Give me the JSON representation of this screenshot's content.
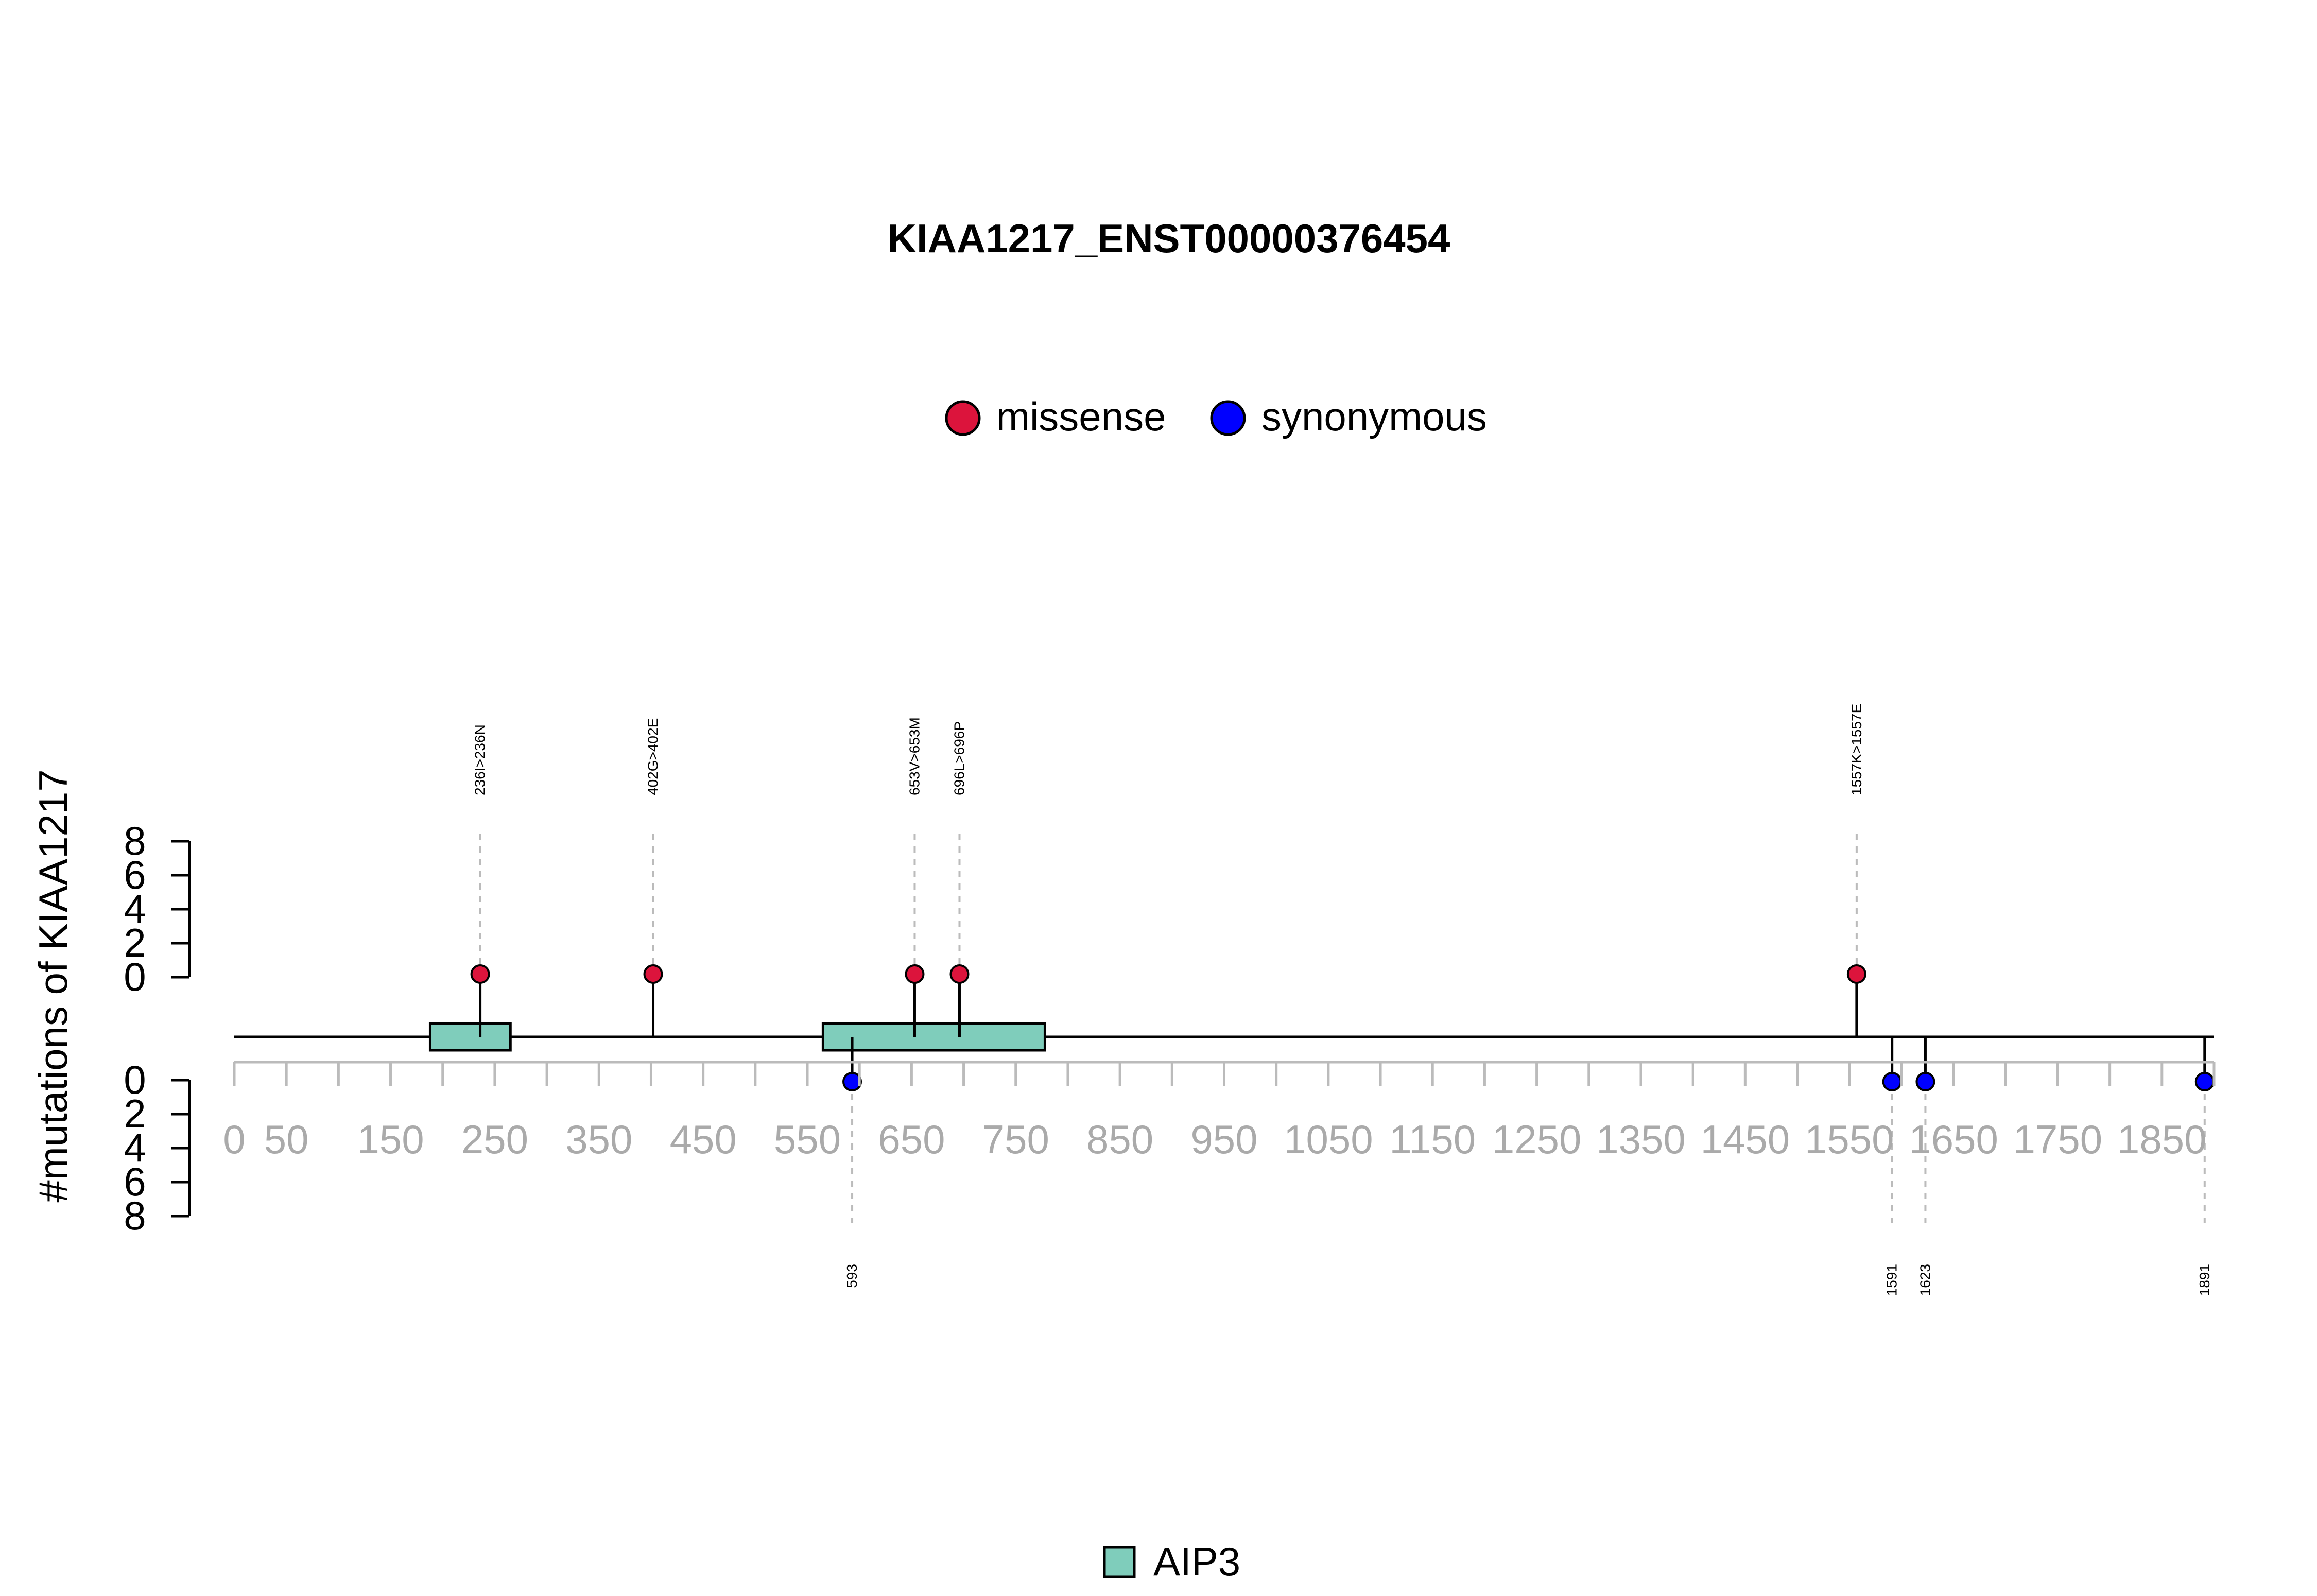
{
  "chart_data": {
    "type": "lollipop",
    "title": "KIAA1217_ENST00000376454",
    "ylabel": "#mutations of KIAA1217",
    "xlim": [
      0,
      1900
    ],
    "x_tick_labels": [
      "0",
      "50",
      "150",
      "250",
      "350",
      "450",
      "550",
      "650",
      "750",
      "850",
      "950",
      "1050",
      "1150",
      "1250",
      "1350",
      "1450",
      "1550",
      "1650",
      "1750",
      "1850"
    ],
    "y_tick_labels_top": [
      "0",
      "2",
      "4",
      "6",
      "8"
    ],
    "y_tick_labels_bottom": [
      "0",
      "2",
      "4",
      "6",
      "8"
    ],
    "ylim": [
      0,
      8
    ],
    "legend": [
      {
        "label": "missense",
        "color": "#DC143C"
      },
      {
        "label": "synonymous",
        "color": "#0000FF"
      }
    ],
    "domain_legend": [
      {
        "label": "AIP3",
        "color": "#7FCDBB"
      }
    ],
    "domains": [
      {
        "name": "AIP3",
        "start": 188,
        "end": 265
      },
      {
        "name": "AIP3",
        "start": 565,
        "end": 778
      }
    ],
    "missense": [
      {
        "position": 236,
        "count": 1,
        "label": "236I>236N"
      },
      {
        "position": 402,
        "count": 1,
        "label": "402G>402E"
      },
      {
        "position": 653,
        "count": 1,
        "label": "653V>653M"
      },
      {
        "position": 696,
        "count": 1,
        "label": "696L>696P"
      },
      {
        "position": 1557,
        "count": 1,
        "label": "1557K>1557E"
      }
    ],
    "synonymous": [
      {
        "position": 593,
        "count": 1,
        "label": "593"
      },
      {
        "position": 1591,
        "count": 1,
        "label": "1591"
      },
      {
        "position": 1623,
        "count": 1,
        "label": "1623"
      },
      {
        "position": 1891,
        "count": 1,
        "label": "1891"
      }
    ]
  }
}
